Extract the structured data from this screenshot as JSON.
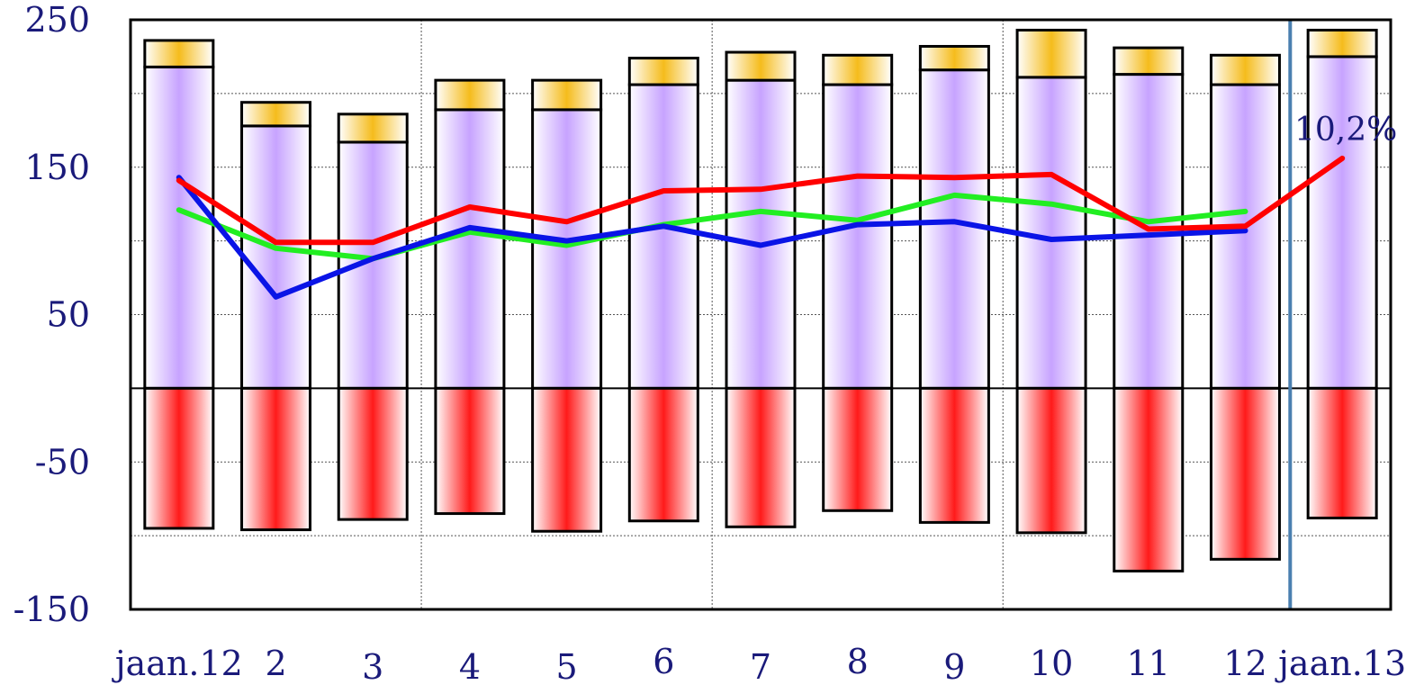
{
  "chart_data": {
    "type": "bar",
    "categories": [
      "jaan.12",
      "2",
      "3",
      "4",
      "5",
      "6",
      "7",
      "8",
      "9",
      "10",
      "11",
      "12",
      "jaan.13"
    ],
    "ylim": [
      -150,
      250
    ],
    "yticks": [
      "250",
      "150",
      "50",
      "-50",
      "-150"
    ],
    "ytick_values": [
      250,
      150,
      50,
      -50,
      -150
    ],
    "grid": "dotted, horizontal every 50 and vertical every 3 categories",
    "stacked_series": [
      {
        "color_key": "lavender",
        "values": [
          218,
          178,
          167,
          189,
          189,
          206,
          209,
          206,
          216,
          211,
          213,
          206,
          225
        ]
      },
      {
        "color_key": "gold",
        "values": [
          18,
          16,
          19,
          20,
          20,
          18,
          19,
          20,
          16,
          32,
          18,
          20,
          18
        ]
      },
      {
        "color_key": "red",
        "values": [
          -95,
          -96,
          -89,
          -85,
          -97,
          -90,
          -94,
          -83,
          -91,
          -98,
          -124,
          -116,
          -88
        ]
      }
    ],
    "line_series": [
      {
        "color_key": "red",
        "values": [
          141,
          99,
          99,
          123,
          113,
          134,
          135,
          144,
          143,
          145,
          108,
          110,
          156
        ]
      },
      {
        "color_key": "green",
        "values": [
          121,
          95,
          88,
          106,
          97,
          111,
          120,
          114,
          131,
          125,
          113,
          120,
          null
        ]
      },
      {
        "color_key": "blue",
        "values": [
          143,
          62,
          88,
          109,
          100,
          110,
          97,
          111,
          113,
          101,
          104,
          107,
          null
        ]
      }
    ],
    "separator_after_category": "12",
    "annotation": {
      "text": "10,2%",
      "category": "jaan.13"
    }
  },
  "colors": {
    "lavender": "#c7a3ff",
    "gold": "#f5bc1c",
    "red_bar": "#ff1a1a",
    "line_red": "#ff0000",
    "line_green": "#22ee22",
    "line_blue": "#0a14e6",
    "separator": "#4a7fb0",
    "text": "#1a1a7a"
  }
}
